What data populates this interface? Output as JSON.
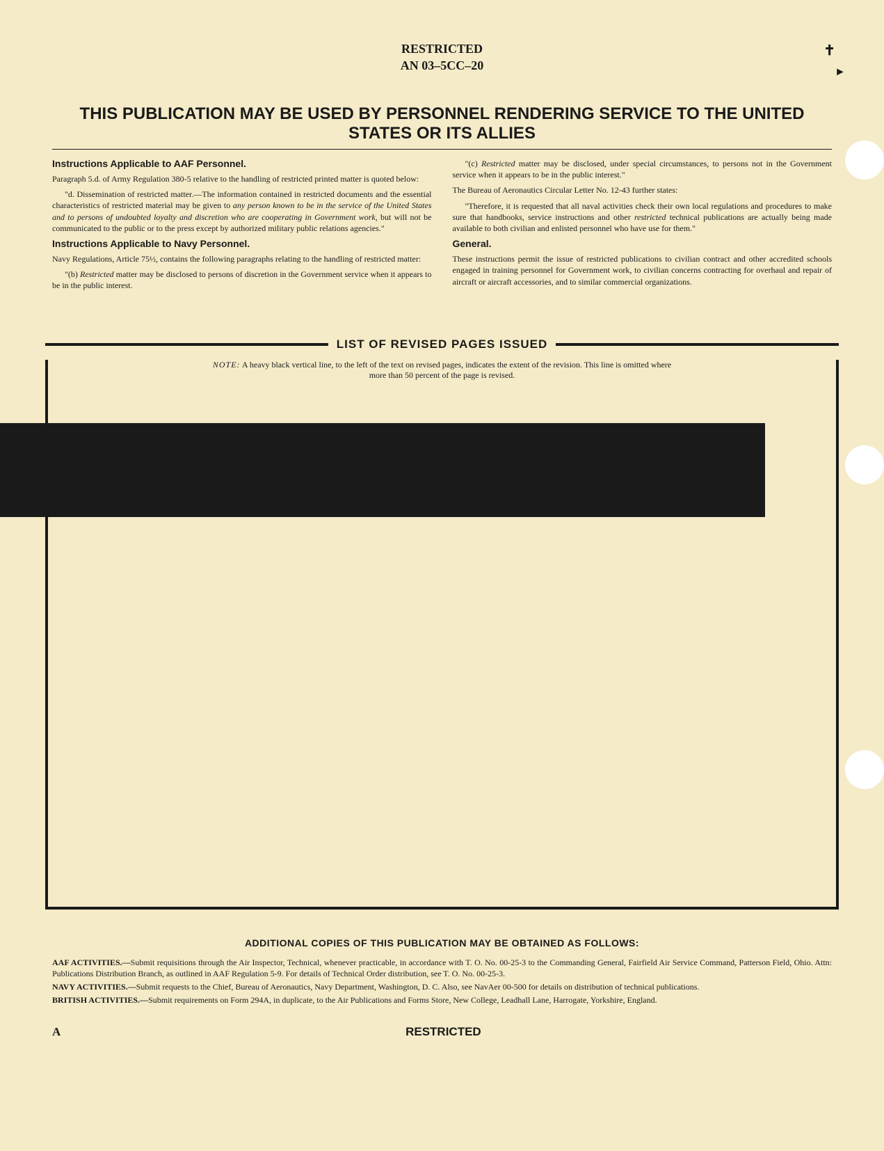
{
  "header": {
    "classification": "RESTRICTED",
    "doc_number": "AN 03–5CC–20"
  },
  "main_title": "THIS PUBLICATION MAY BE USED BY PERSONNEL RENDERING SERVICE TO THE UNITED STATES OR ITS ALLIES",
  "left_col": {
    "heading1": "Instructions Applicable to AAF Personnel.",
    "p1": "Paragraph 5.d. of Army Regulation 380-5 relative to the handling of restricted printed matter is quoted below:",
    "p2_prefix": "\"d. Dissemination of restricted matter.—The information contained in restricted documents and the essential characteristics of restricted material may be given to ",
    "p2_italic": "any person known to be in the service of the United States and to persons of undoubted loyalty and discretion who are cooperating in Government work,",
    "p2_suffix": " but will not be communicated to the public or to the press except by authorized military public relations agencies.\"",
    "heading2": "Instructions Applicable to Navy Personnel.",
    "p3": "Navy Regulations, Article 75½, contains the following paragraphs relating to the handling of restricted matter:",
    "p4_prefix": "\"(b) ",
    "p4_italic": "Restricted",
    "p4_suffix": " matter may be disclosed to persons of discretion in the Government service when it appears to be in the public interest."
  },
  "right_col": {
    "p1_prefix": "\"(c) ",
    "p1_italic": "Restricted",
    "p1_suffix": " matter may be disclosed, under special circumstances, to persons not in the Government service when it appears to be in the public interest.\"",
    "p2": "The Bureau of Aeronautics Circular Letter No. 12-43 further states:",
    "p3_prefix": "\"Therefore, it is requested that all naval activities check their own local regulations and procedures to make sure that handbooks, service instructions and other ",
    "p3_italic": "restricted",
    "p3_suffix": " technical publications are actually being made available to both civilian and enlisted personnel who have use for them.\"",
    "heading1": "General.",
    "p4": "These instructions permit the issue of restricted publications to civilian contract and other accredited schools engaged in training personnel for Government work, to civilian concerns contracting for overhaul and repair of aircraft or aircraft accessories, and to similar commercial organizations."
  },
  "revised": {
    "title": "LIST OF REVISED PAGES ISSUED",
    "note_label": "NOTE:",
    "note_text": " A heavy black vertical line, to the left of the text on revised pages, indicates the extent of the revision. This line is omitted where more than 50 percent of the page is revised."
  },
  "footer": {
    "title": "ADDITIONAL COPIES OF THIS PUBLICATION MAY BE OBTAINED AS FOLLOWS:",
    "aaf_label": "AAF ACTIVITIES.—",
    "aaf_text": "Submit requisitions through the Air Inspector, Technical, whenever practicable, in accordance with T. O. No. 00-25-3 to the Commanding General, Fairfield Air Service Command, Patterson Field, Ohio. Attn: Publications Distribution Branch, as outlined in AAF Regulation 5-9. For details of Technical Order distribution, see T. O. No. 00-25-3.",
    "navy_label": "NAVY ACTIVITIES.—",
    "navy_text": "Submit requests to the Chief, Bureau of Aeronautics, Navy Department, Washington, D. C. Also, see NavAer 00-500 for details on distribution of technical publications.",
    "british_label": "BRITISH ACTIVITIES.—",
    "british_text": "Submit requirements on Form 294A, in duplicate, to the Air Publications and Forms Store, New College, Leadhall Lane, Harrogate, Yorkshire, England."
  },
  "bottom": {
    "letter": "A",
    "classification": "RESTRICTED"
  },
  "decoration": {
    "mark1": "✝",
    "mark2": "►"
  },
  "colors": {
    "background": "#f5ebc8",
    "text": "#1a1a1a",
    "black_bar": "#1a1a1a",
    "hole": "#ffffff"
  }
}
